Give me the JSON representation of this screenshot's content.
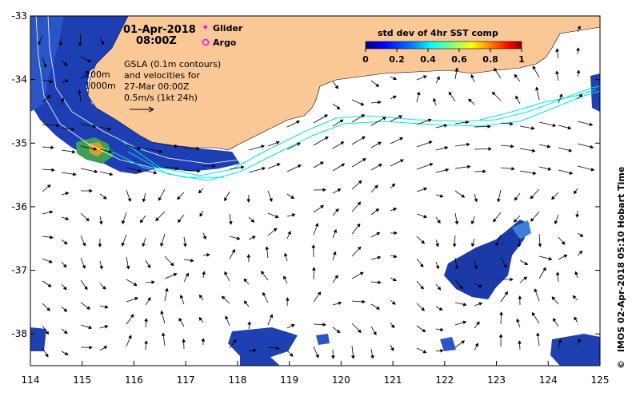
{
  "header": {
    "date": "01-Apr-2018",
    "time": "08:00Z"
  },
  "legend": {
    "glider_label": "Glider",
    "argo_label": "Argo",
    "glider_color": "#ff00ff",
    "argo_color": "#ff00ff"
  },
  "colorbar": {
    "title": "std dev of 4hr SST comp",
    "ticks": [
      "0",
      "0.2",
      "0.4",
      "0.6",
      "0.8",
      "1"
    ],
    "colors": [
      "#00007f",
      "#0000ff",
      "#007fff",
      "#00ffff",
      "#7fff7f",
      "#ffff00",
      "#ff7f00",
      "#ff0000",
      "#7f0000"
    ]
  },
  "annotation": {
    "line1": "GSLA (0.1m contours)",
    "line2": "and velocities for",
    "line3": "27-Mar 00:00Z",
    "scale_label": "0.5m/s (1kt 24h)"
  },
  "isobaths": {
    "label_200": "200m",
    "label_1000": "1000m"
  },
  "axes": {
    "x_ticks": [
      "114",
      "115",
      "116",
      "117",
      "118",
      "119",
      "120",
      "121",
      "122",
      "123",
      "124",
      "125"
    ],
    "y_ticks": [
      "-33",
      "-34",
      "-35",
      "-36",
      "-37",
      "-38"
    ],
    "lon_range": [
      114,
      125
    ],
    "lat_range": [
      -33,
      -38.5
    ]
  },
  "credit": {
    "text": "IMOS 02-Apr-2018 05:10 Hobart Time",
    "copyright": "©"
  },
  "colors": {
    "land": "#fac896",
    "shelf_sst": "#1a3fb0",
    "contour": "#00e5e5",
    "isobath": "#ffffff",
    "arrow": "#000000"
  }
}
